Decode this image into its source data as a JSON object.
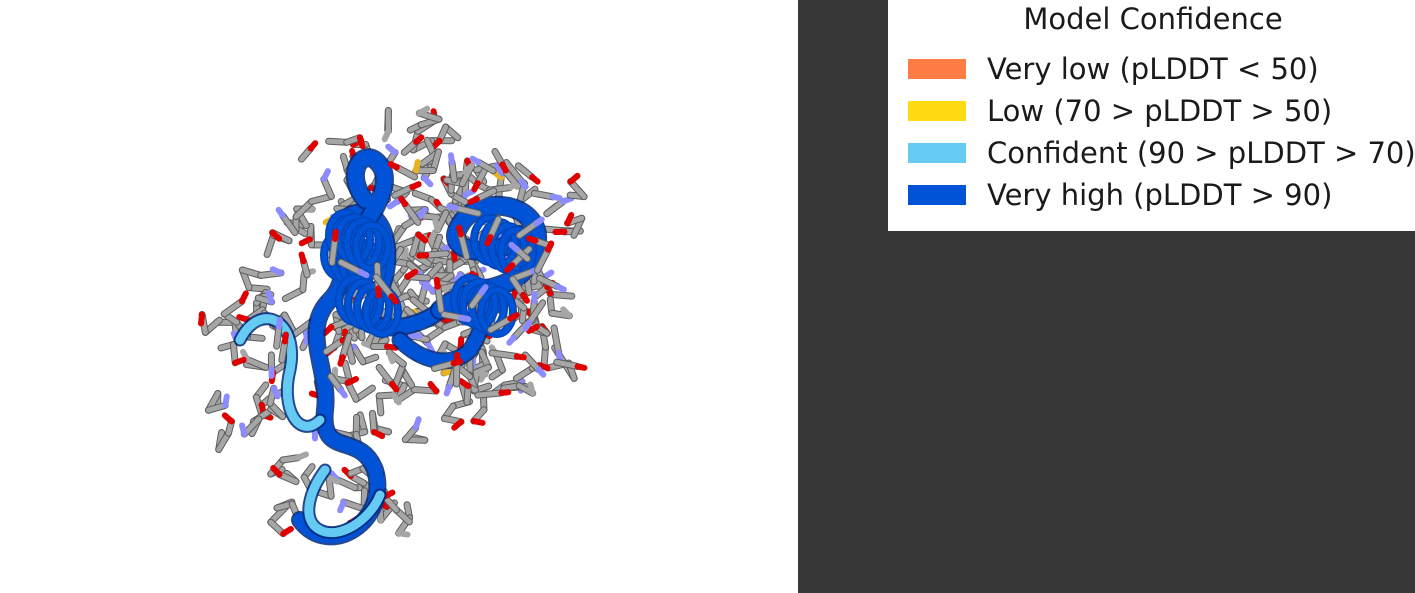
{
  "legend": {
    "title": "Model Confidence",
    "items": [
      {
        "label": "Very low (pLDDT < 50)",
        "color": "#FF7D45"
      },
      {
        "label": "Low (70 > pLDDT > 50)",
        "color": "#FFDB13"
      },
      {
        "label": "Confident (90 > pLDDT > 70)",
        "color": "#65CBF3"
      },
      {
        "label": "Very high (pLDDT > 90)",
        "color": "#0053D6"
      }
    ]
  },
  "structure": {
    "representation": "cartoon-with-sticks",
    "atom_colors": {
      "carbon": "#A6A6A6",
      "oxygen": "#E00000",
      "nitrogen": "#8C8CFF",
      "sulfur": "#E6B422"
    },
    "ribbon_colors": {
      "very_high": "#0053D6",
      "confident": "#65CBF3"
    }
  },
  "panel": {
    "background": "#373737"
  }
}
